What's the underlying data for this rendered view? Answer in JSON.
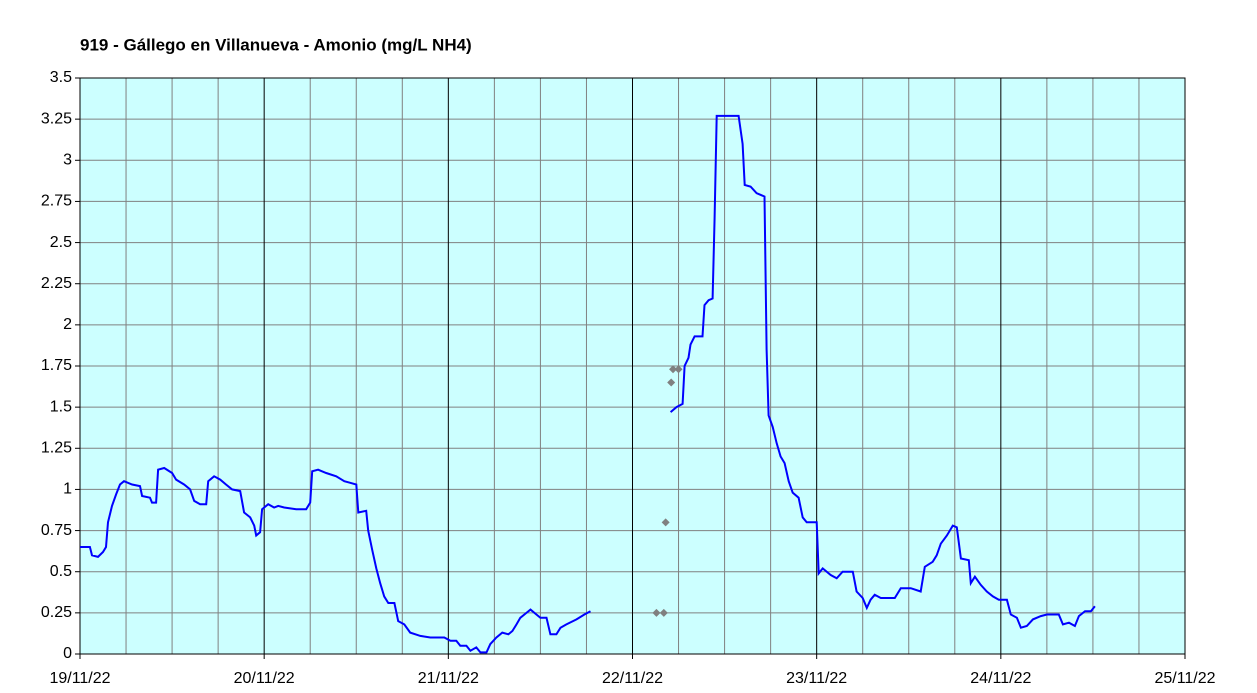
{
  "chart_data": {
    "type": "line",
    "title": "919 - Gállego en Villanueva - Amonio (mg/L NH4)",
    "xlim": [
      0,
      6
    ],
    "xticks": [
      {
        "value": 0,
        "label": "19/11/22"
      },
      {
        "value": 1,
        "label": "20/11/22"
      },
      {
        "value": 2,
        "label": "21/11/22"
      },
      {
        "value": 3,
        "label": "22/11/22"
      },
      {
        "value": 4,
        "label": "23/11/22"
      },
      {
        "value": 5,
        "label": "24/11/22"
      },
      {
        "value": 6,
        "label": "25/11/22"
      }
    ],
    "ylim": [
      0,
      3.5
    ],
    "yticks": [
      0,
      0.25,
      0.5,
      0.75,
      1,
      1.25,
      1.5,
      1.75,
      2,
      2.25,
      2.5,
      2.75,
      3,
      3.25,
      3.5
    ],
    "grid": true,
    "background": "#ccffff",
    "series": [
      {
        "type": "line",
        "color": "#0000ff",
        "x": [
          0,
          0.054,
          0.065,
          0.098,
          0.125,
          0.141,
          0.152,
          0.174,
          0.196,
          0.217,
          0.239,
          0.283,
          0.326,
          0.337,
          0.38,
          0.391,
          0.413,
          0.424,
          0.457,
          0.5,
          0.522,
          0.565,
          0.598,
          0.62,
          0.652,
          0.685,
          0.696,
          0.728,
          0.761,
          0.793,
          0.826,
          0.87,
          0.891,
          0.924,
          0.946,
          0.957,
          0.978,
          0.989,
          1.022,
          1.054,
          1.076,
          1.109,
          1.174,
          1.228,
          1.25,
          1.261,
          1.293,
          1.337,
          1.391,
          1.435,
          1.467,
          1.5,
          1.511,
          1.554,
          1.565,
          1.587,
          1.609,
          1.63,
          1.652,
          1.674,
          1.707,
          1.728,
          1.761,
          1.793,
          1.848,
          1.902,
          1.978,
          2.011,
          2.043,
          2.065,
          2.098,
          2.12,
          2.152,
          2.174,
          2.207,
          2.228,
          2.261,
          2.293,
          2.326,
          2.348,
          2.37,
          2.391,
          2.424,
          2.446,
          2.478,
          2.5,
          2.533,
          2.554,
          2.587,
          2.609,
          2.641,
          2.696,
          2.739,
          2.772,
          3.0,
          3.207,
          3.239,
          3.272,
          3.283,
          3.304,
          3.315,
          3.337,
          3.38,
          3.391,
          3.413,
          3.435,
          3.446,
          3.457,
          3.576,
          3.598,
          3.609,
          3.641,
          3.674,
          3.717,
          3.728,
          3.739,
          3.761,
          3.783,
          3.804,
          3.826,
          3.848,
          3.87,
          3.902,
          3.924,
          3.946,
          4.0,
          4.011,
          4.033,
          4.076,
          4.109,
          4.141,
          4.196,
          4.217,
          4.25,
          4.272,
          4.293,
          4.315,
          4.348,
          4.424,
          4.457,
          4.511,
          4.565,
          4.587,
          4.63,
          4.652,
          4.674,
          4.707,
          4.739,
          4.761,
          4.783,
          4.826,
          4.837,
          4.859,
          4.891,
          4.924,
          4.957,
          4.989,
          5.033,
          5.054,
          5.087,
          5.109,
          5.141,
          5.174,
          5.217,
          5.25,
          5.315,
          5.337,
          5.37,
          5.402,
          5.424,
          5.457,
          5.489,
          5.511
        ],
        "values": [
          0.65,
          0.65,
          0.6,
          0.59,
          0.62,
          0.65,
          0.8,
          0.9,
          0.97,
          1.03,
          1.05,
          1.03,
          1.02,
          0.96,
          0.95,
          0.92,
          0.92,
          1.12,
          1.13,
          1.1,
          1.06,
          1.03,
          1.0,
          0.93,
          0.91,
          0.91,
          1.05,
          1.08,
          1.06,
          1.03,
          1.0,
          0.99,
          0.86,
          0.83,
          0.78,
          0.72,
          0.74,
          0.88,
          0.91,
          0.89,
          0.9,
          0.89,
          0.88,
          0.88,
          0.92,
          1.11,
          1.12,
          1.1,
          1.08,
          1.05,
          1.04,
          1.03,
          0.86,
          0.87,
          0.75,
          0.63,
          0.52,
          0.43,
          0.35,
          0.31,
          0.31,
          0.2,
          0.18,
          0.13,
          0.11,
          0.1,
          0.1,
          0.08,
          0.08,
          0.05,
          0.05,
          0.02,
          0.04,
          0.01,
          0.01,
          0.06,
          0.1,
          0.13,
          0.12,
          0.14,
          0.18,
          0.22,
          0.25,
          0.27,
          0.24,
          0.22,
          0.22,
          0.12,
          0.12,
          0.16,
          0.18,
          0.21,
          0.24,
          0.26,
          null,
          1.47,
          1.5,
          1.52,
          1.75,
          1.8,
          1.88,
          1.93,
          1.93,
          2.12,
          2.15,
          2.16,
          2.65,
          3.27,
          3.27,
          3.1,
          2.85,
          2.84,
          2.8,
          2.78,
          1.85,
          1.45,
          1.38,
          1.28,
          1.2,
          1.16,
          1.05,
          0.98,
          0.95,
          0.83,
          0.8,
          0.8,
          0.49,
          0.52,
          0.48,
          0.46,
          0.5,
          0.5,
          0.38,
          0.34,
          0.28,
          0.33,
          0.36,
          0.34,
          0.34,
          0.4,
          0.4,
          0.38,
          0.53,
          0.56,
          0.6,
          0.67,
          0.72,
          0.78,
          0.77,
          0.58,
          0.57,
          0.43,
          0.47,
          0.42,
          0.38,
          0.35,
          0.33,
          0.33,
          0.24,
          0.22,
          0.16,
          0.17,
          0.21,
          0.23,
          0.24,
          0.24,
          0.18,
          0.19,
          0.17,
          0.23,
          0.26,
          0.26,
          0.29
        ]
      },
      {
        "type": "scatter",
        "color": "#808080",
        "x": [
          3.13,
          3.17,
          3.18,
          3.21,
          3.22,
          3.25
        ],
        "values": [
          0.25,
          0.25,
          0.8,
          1.65,
          1.73,
          1.73
        ]
      }
    ]
  }
}
